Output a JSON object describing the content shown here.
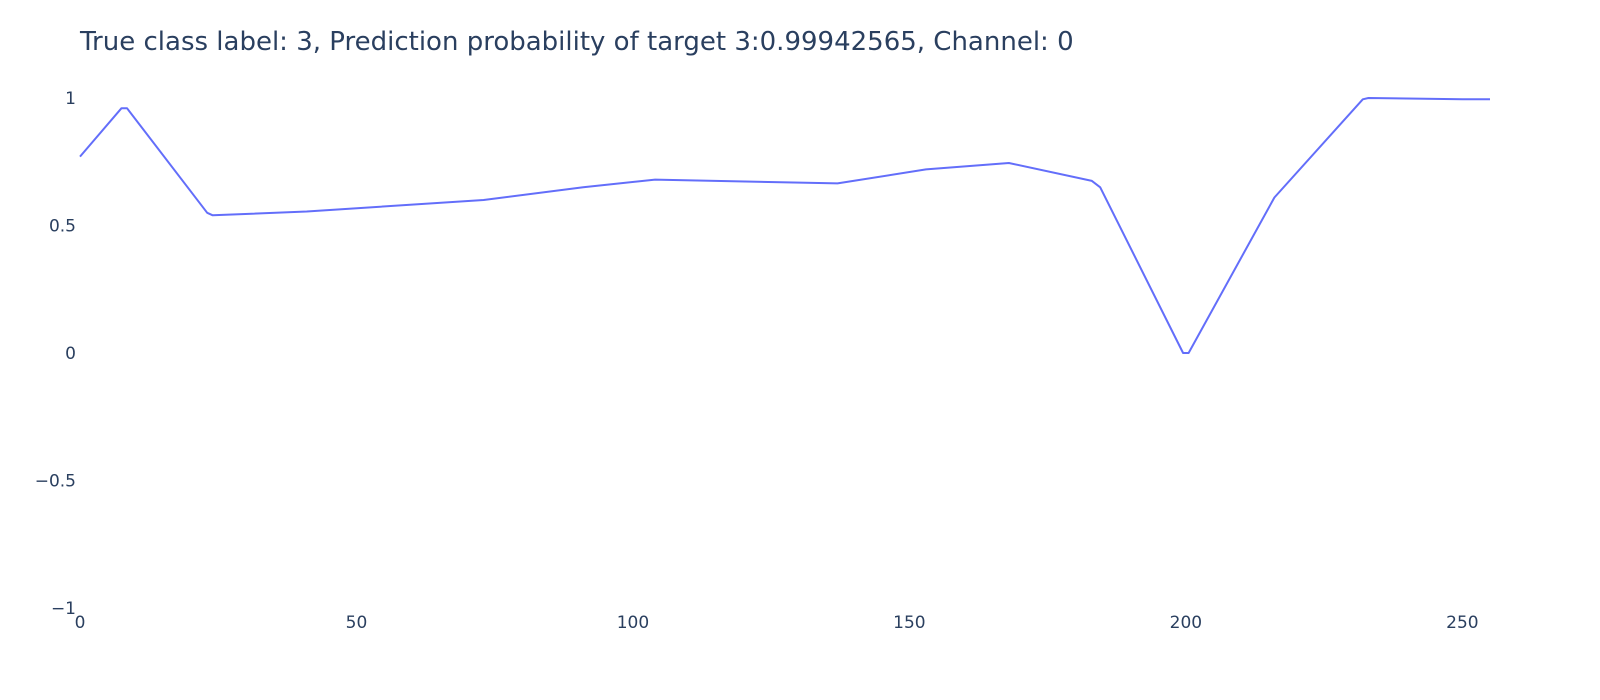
{
  "chart_data": {
    "type": "line",
    "title": "True class label: 3, Prediction probability of target 3:0.99942565, Channel: 0",
    "xlabel": "",
    "ylabel": "",
    "xlim": [
      0,
      255
    ],
    "ylim": [
      -1,
      1
    ],
    "x_ticks": [
      0,
      50,
      100,
      150,
      200,
      250
    ],
    "y_ticks": [
      {
        "value": -1,
        "label": "−1"
      },
      {
        "value": -0.5,
        "label": "−0.5"
      },
      {
        "value": 0,
        "label": "0"
      },
      {
        "value": 0.5,
        "label": "0.5"
      },
      {
        "value": 1,
        "label": "1"
      }
    ],
    "grid": false,
    "line_color": "#636efa",
    "series": [
      {
        "x": [
          0,
          7.5,
          8.5,
          23,
          24,
          41,
          73,
          91,
          104,
          137,
          153,
          168,
          183,
          184.5,
          199.5,
          200.5,
          216,
          232,
          233,
          250,
          255
        ],
        "y": [
          0.77,
          0.96,
          0.96,
          0.55,
          0.54,
          0.555,
          0.6,
          0.65,
          0.68,
          0.665,
          0.72,
          0.745,
          0.675,
          0.65,
          0.0,
          0.0,
          0.61,
          0.995,
          1.0,
          0.995,
          0.995
        ]
      }
    ]
  }
}
